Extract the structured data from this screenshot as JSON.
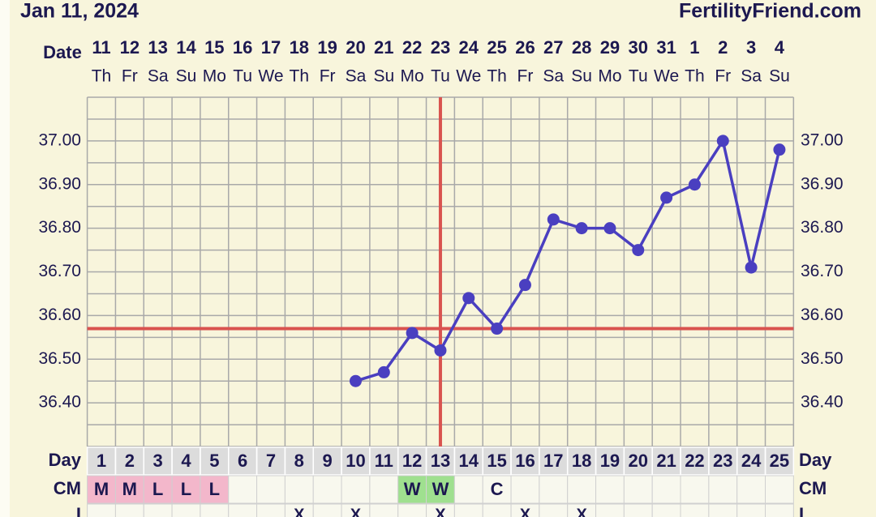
{
  "chart_data": {
    "type": "line",
    "title": "Jan 11, 2024",
    "source": "FertilityFriend.com",
    "date_label": "Date",
    "categories": [
      "11",
      "12",
      "13",
      "14",
      "15",
      "16",
      "17",
      "18",
      "19",
      "20",
      "21",
      "22",
      "23",
      "24",
      "25",
      "26",
      "27",
      "28",
      "29",
      "30",
      "31",
      "1",
      "2",
      "3",
      "4"
    ],
    "weekdays": [
      "Th",
      "Fr",
      "Sa",
      "Su",
      "Mo",
      "Tu",
      "We",
      "Th",
      "Fr",
      "Sa",
      "Su",
      "Mo",
      "Tu",
      "We",
      "Th",
      "Fr",
      "Sa",
      "Su",
      "Mo",
      "Tu",
      "We",
      "Th",
      "Fr",
      "Sa",
      "Su"
    ],
    "series": [
      {
        "color": "#4a3fc0",
        "values": [
          null,
          null,
          null,
          null,
          null,
          null,
          null,
          null,
          null,
          36.45,
          36.47,
          36.56,
          36.52,
          36.64,
          36.57,
          36.67,
          36.82,
          36.8,
          36.8,
          36.75,
          36.87,
          36.9,
          37.0,
          36.71,
          36.98
        ]
      }
    ],
    "ylim": [
      36.3,
      37.1
    ],
    "yticks": [
      {
        "value": 36.4,
        "label": "36.40"
      },
      {
        "value": 36.5,
        "label": "36.50"
      },
      {
        "value": 36.6,
        "label": "36.60"
      },
      {
        "value": 36.7,
        "label": "36.70"
      },
      {
        "value": 36.8,
        "label": "36.80"
      },
      {
        "value": 36.9,
        "label": "36.90"
      },
      {
        "value": 37.0,
        "label": "37.00"
      }
    ],
    "minor_grid": [
      36.3,
      36.35,
      36.45,
      36.55,
      36.65,
      36.75,
      36.85,
      36.95,
      37.05,
      37.1
    ],
    "coverline": {
      "value": 36.57,
      "color": "#d9534f"
    },
    "ovulation_day": 13,
    "day_label": "Day",
    "cycle_days": [
      1,
      2,
      3,
      4,
      5,
      6,
      7,
      8,
      9,
      10,
      11,
      12,
      13,
      14,
      15,
      16,
      17,
      18,
      19,
      20,
      21,
      22,
      23,
      24,
      25
    ],
    "cm_label": "CM",
    "cm": [
      "M",
      "M",
      "L",
      "L",
      "L",
      null,
      null,
      null,
      null,
      null,
      null,
      "W",
      "W",
      null,
      "C",
      null,
      null,
      null,
      null,
      null,
      null,
      null,
      null,
      null,
      null
    ],
    "cm_colors": {
      "M": "#f3b7cb",
      "L": "#f3b7cb",
      "W": "#9fe08f"
    },
    "i_label": "I",
    "intercourse": [
      null,
      null,
      null,
      null,
      null,
      null,
      null,
      "X",
      null,
      "X",
      null,
      null,
      "X",
      null,
      null,
      "X",
      null,
      "X",
      null,
      null,
      null,
      null,
      null,
      null,
      null
    ]
  }
}
